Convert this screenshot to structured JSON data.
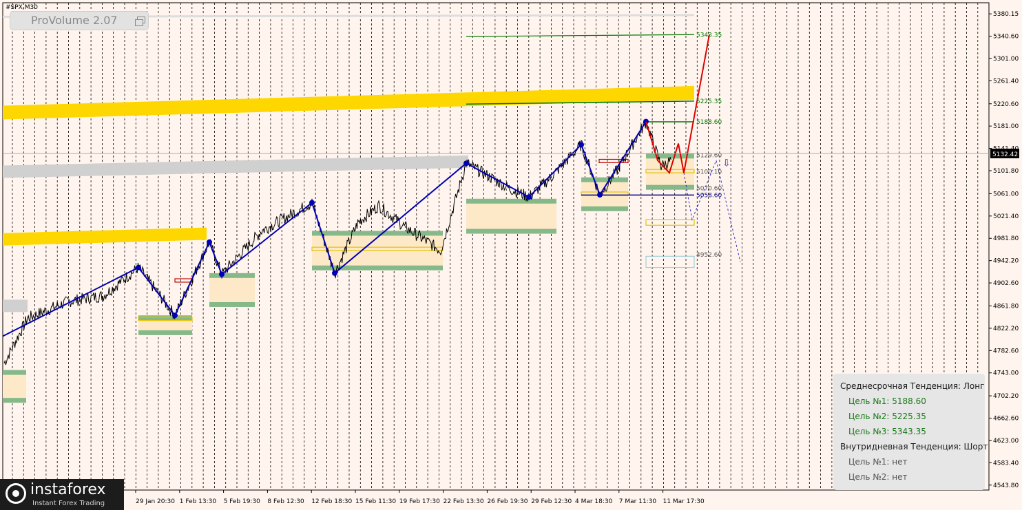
{
  "symbol": "#SPX,M30",
  "indicator": {
    "name": "ProVolume 2.07"
  },
  "current_price": "5132.42",
  "info_panel": {
    "medium_title": "Среднесрочная Тенденция: Лонг",
    "targets_medium": [
      "Цель №1: 5188.60",
      "Цель №2: 5225.35",
      "Цель №3: 5343.35"
    ],
    "intraday_title": "Внутридневная Тенденция: Шорт",
    "targets_intraday": [
      "Цель №1: нет",
      "Цель №2: нет"
    ]
  },
  "logo": {
    "name": "instaforex",
    "tagline": "Instant Forex Trading"
  },
  "colors": {
    "background": "#fff5ee",
    "zigzag": "#0000b4",
    "forecast": "#dd0000",
    "target_line": "#007a00",
    "yellow_band": "#ffd700",
    "gray_band": "#d0d0d0",
    "volume_box": "#fde9c8",
    "volume_edge": "#86b98a"
  },
  "chart_data": {
    "type": "line",
    "x_tick_labels": [
      "29 Jan 20:30",
      "1 Feb 13:30",
      "5 Feb 19:30",
      "8 Feb 12:30",
      "12 Feb 18:30",
      "15 Feb 11:30",
      "19 Feb 17:30",
      "22 Feb 13:30",
      "26 Feb 19:30",
      "29 Feb 12:30",
      "4 Mar 18:30",
      "7 Mar 11:30",
      "11 Mar 17:30"
    ],
    "y_tick_labels": [
      "5380.15",
      "5340.60",
      "5301.00",
      "5261.40",
      "5220.60",
      "5181.00",
      "5141.40",
      "5101.80",
      "5061.00",
      "5021.40",
      "4981.80",
      "4942.20",
      "4902.60",
      "4861.80",
      "4822.20",
      "4782.60",
      "4743.00",
      "4702.20",
      "4662.60",
      "4623.00",
      "4583.40",
      "4543.80"
    ],
    "ylim": [
      4543.8,
      5380.15
    ],
    "level_labels": [
      "5343.35",
      "5225.35",
      "5188.60",
      "5129.60",
      "5100.10",
      "5070.60",
      "5058.60",
      "4952.60"
    ],
    "zigzag_points": [
      4808,
      4930,
      4845,
      4975,
      4918,
      5045,
      4920,
      5115,
      5055,
      5148,
      5059,
      5189
    ],
    "forecast_points": [
      5189,
      5120,
      5098,
      5150,
      5098,
      5343.35
    ]
  }
}
